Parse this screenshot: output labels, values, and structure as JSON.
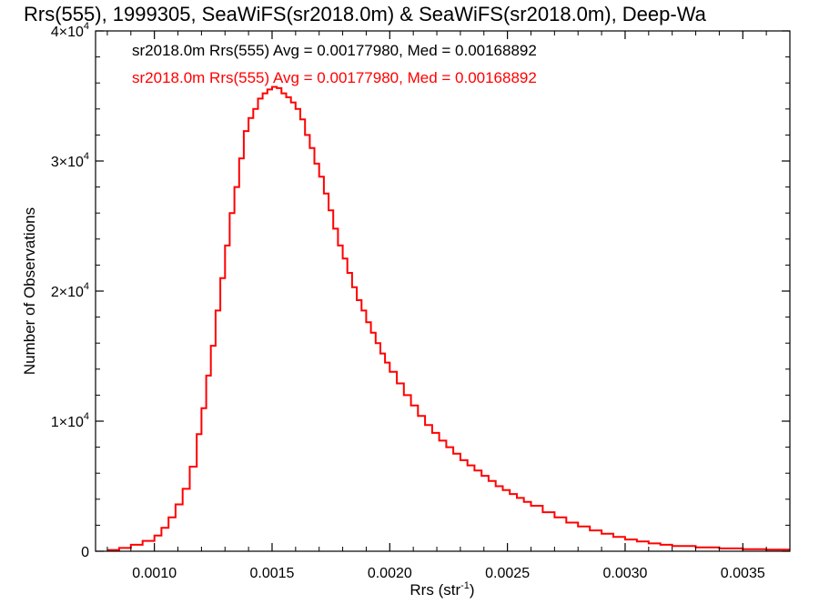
{
  "chart_data": {
    "type": "line",
    "style": "step",
    "title": "Rrs(555), 1999305, SeaWiFS(sr2018.0m) & SeaWiFS(sr2018.0m), Deep-Wa",
    "xlabel": "Rrs (str",
    "xlabel_superscript": "-1",
    "xlabel_suffix": ")",
    "ylabel": "Number of Observations",
    "xlim": [
      0.00075,
      0.0037
    ],
    "ylim": [
      0,
      40000
    ],
    "x_ticks": [
      0.001,
      0.0015,
      0.002,
      0.0025,
      0.003,
      0.0035
    ],
    "x_tick_labels": [
      "0.0010",
      "0.0015",
      "0.0020",
      "0.0025",
      "0.0030",
      "0.0035"
    ],
    "y_ticks": [
      0,
      10000,
      20000,
      30000,
      40000
    ],
    "y_tick_labels": [
      {
        "text": "0",
        "mantissa": "",
        "exponent": ""
      },
      {
        "text": "",
        "mantissa": "1×10",
        "exponent": "4"
      },
      {
        "text": "",
        "mantissa": "2×10",
        "exponent": "4"
      },
      {
        "text": "",
        "mantissa": "3×10",
        "exponent": "4"
      },
      {
        "text": "",
        "mantissa": "4×10",
        "exponent": "4"
      }
    ],
    "grid": false,
    "legend_placement": "top-left",
    "legend": [
      {
        "text": "sr2018.0m Rrs(555) Avg = 0.00177980, Med = 0.00168892",
        "color": "#000000"
      },
      {
        "text": "sr2018.0m Rrs(555) Avg = 0.00177980, Med = 0.00168892",
        "color": "#ff0000"
      }
    ],
    "series": [
      {
        "color": "#ff0000",
        "x": [
          0.0008,
          0.00085,
          0.0009,
          0.00095,
          0.001,
          0.00103,
          0.00106,
          0.00109,
          0.00112,
          0.00115,
          0.00118,
          0.0012,
          0.00122,
          0.00124,
          0.00126,
          0.00128,
          0.0013,
          0.00132,
          0.00134,
          0.00136,
          0.00138,
          0.0014,
          0.00142,
          0.00144,
          0.00146,
          0.00148,
          0.0015,
          0.00152,
          0.00154,
          0.00156,
          0.00158,
          0.0016,
          0.00162,
          0.00164,
          0.00166,
          0.00168,
          0.0017,
          0.00172,
          0.00174,
          0.00176,
          0.00178,
          0.0018,
          0.00182,
          0.00184,
          0.00186,
          0.00188,
          0.0019,
          0.00192,
          0.00194,
          0.00196,
          0.00198,
          0.002,
          0.00203,
          0.00206,
          0.00209,
          0.00212,
          0.00215,
          0.00218,
          0.00221,
          0.00224,
          0.00227,
          0.0023,
          0.00233,
          0.00236,
          0.00239,
          0.00242,
          0.00245,
          0.00248,
          0.00251,
          0.00254,
          0.00257,
          0.0026,
          0.00265,
          0.0027,
          0.00275,
          0.0028,
          0.00285,
          0.0029,
          0.00295,
          0.003,
          0.00305,
          0.0031,
          0.00315,
          0.0032,
          0.0033,
          0.0034,
          0.0035,
          0.0036,
          0.0037
        ],
        "y": [
          100,
          250,
          500,
          800,
          1200,
          1800,
          2600,
          3600,
          4800,
          6500,
          9000,
          11000,
          13500,
          15800,
          18500,
          21000,
          23500,
          26000,
          28000,
          30200,
          32300,
          33300,
          34000,
          34800,
          35200,
          35500,
          35700,
          35600,
          35200,
          34900,
          34500,
          34000,
          33200,
          32000,
          31000,
          29800,
          28800,
          27500,
          26200,
          24800,
          23500,
          22500,
          21400,
          20300,
          19300,
          18500,
          17600,
          16800,
          16000,
          15200,
          14500,
          13800,
          12900,
          12000,
          11200,
          10400,
          9700,
          9100,
          8500,
          8000,
          7500,
          7000,
          6600,
          6200,
          5800,
          5400,
          5000,
          4700,
          4400,
          4100,
          3800,
          3500,
          3000,
          2600,
          2200,
          1900,
          1600,
          1350,
          1100,
          900,
          750,
          600,
          500,
          400,
          300,
          220,
          160,
          120,
          90
        ]
      }
    ]
  }
}
